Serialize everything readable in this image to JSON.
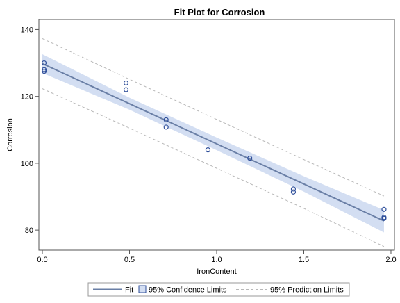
{
  "chart_data": {
    "type": "scatter",
    "title": "Fit Plot for Corrosion",
    "xlabel": "IronContent",
    "ylabel": "Corrosion",
    "xlim": [
      -0.02,
      2.02
    ],
    "ylim": [
      74,
      143
    ],
    "x_ticks": [
      0.0,
      0.5,
      1.0,
      1.5,
      2.0
    ],
    "x_tick_labels": [
      "0.0",
      "0.5",
      "1.0",
      "1.5",
      "2.0"
    ],
    "y_ticks": [
      80,
      100,
      120,
      140
    ],
    "y_tick_labels": [
      "80",
      "100",
      "120",
      "140"
    ],
    "grid": false,
    "legend_position": "bottom",
    "colors": {
      "fit": "#6a7fa6",
      "confidence": "#d3def2",
      "prediction": "#b8b8b8",
      "points": "#2f4f9a"
    },
    "points": [
      {
        "x": 0.01,
        "y": 130.0
      },
      {
        "x": 0.01,
        "y": 128.0
      },
      {
        "x": 0.01,
        "y": 127.5
      },
      {
        "x": 0.48,
        "y": 124.0
      },
      {
        "x": 0.48,
        "y": 122.0
      },
      {
        "x": 0.71,
        "y": 113.0
      },
      {
        "x": 0.71,
        "y": 110.8
      },
      {
        "x": 0.95,
        "y": 104.0
      },
      {
        "x": 1.19,
        "y": 101.5
      },
      {
        "x": 1.44,
        "y": 92.3
      },
      {
        "x": 1.44,
        "y": 91.4
      },
      {
        "x": 1.96,
        "y": 86.2
      },
      {
        "x": 1.96,
        "y": 83.8
      },
      {
        "x": 1.96,
        "y": 83.5
      }
    ],
    "fit_line": {
      "intercept": 129.8,
      "slope": -24.0
    },
    "confidence_limits": [
      {
        "x": 0.0,
        "lower": 127.0,
        "upper": 132.6
      },
      {
        "x": 0.5,
        "lower": 116.0,
        "upper": 119.6
      },
      {
        "x": 1.0,
        "lower": 103.9,
        "upper": 107.7
      },
      {
        "x": 1.5,
        "lower": 91.5,
        "upper": 96.1
      },
      {
        "x": 1.96,
        "lower": 79.3,
        "upper": 86.0
      }
    ],
    "prediction_limits": [
      {
        "x": 0.0,
        "lower": 122.3,
        "upper": 137.3
      },
      {
        "x": 0.5,
        "lower": 110.5,
        "upper": 125.1
      },
      {
        "x": 1.0,
        "lower": 98.5,
        "upper": 113.1
      },
      {
        "x": 1.5,
        "lower": 86.5,
        "upper": 101.1
      },
      {
        "x": 1.96,
        "lower": 75.1,
        "upper": 90.2
      }
    ],
    "legend": [
      {
        "key": "fit",
        "label": "Fit"
      },
      {
        "key": "confidence",
        "label": "95% Confidence Limits"
      },
      {
        "key": "prediction",
        "label": "95% Prediction Limits"
      }
    ]
  }
}
